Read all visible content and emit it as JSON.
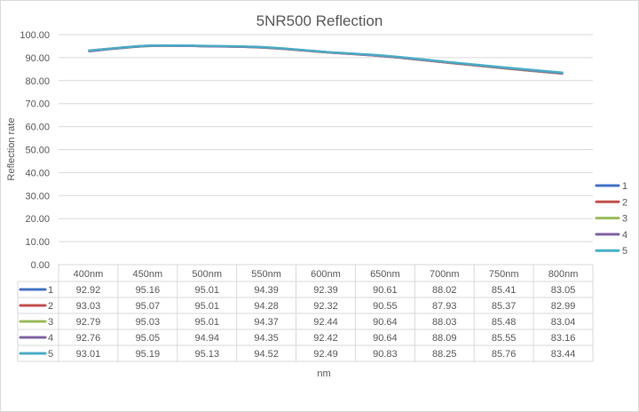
{
  "chart_data": {
    "type": "line",
    "title": "5NR500 Reflection",
    "xlabel": "nm",
    "ylabel": "Reflection rate",
    "ylim": [
      0,
      100
    ],
    "yticks": [
      "0.00",
      "10.00",
      "20.00",
      "30.00",
      "40.00",
      "50.00",
      "60.00",
      "70.00",
      "80.00",
      "90.00",
      "100.00"
    ],
    "grid": true,
    "legend": "right",
    "data_table": true,
    "categories": [
      "400nm",
      "450nm",
      "500nm",
      "550nm",
      "600nm",
      "650nm",
      "700nm",
      "750nm",
      "800nm"
    ],
    "series": [
      {
        "name": "1",
        "color": "#4472c4",
        "values": [
          92.92,
          95.16,
          95.01,
          94.39,
          92.39,
          90.61,
          88.02,
          85.41,
          83.05
        ]
      },
      {
        "name": "2",
        "color": "#c0504d",
        "values": [
          93.03,
          95.07,
          95.01,
          94.28,
          92.32,
          90.55,
          87.93,
          85.37,
          82.99
        ]
      },
      {
        "name": "3",
        "color": "#9bbb59",
        "values": [
          92.79,
          95.03,
          95.01,
          94.37,
          92.44,
          90.64,
          88.03,
          85.48,
          83.04
        ]
      },
      {
        "name": "4",
        "color": "#8064a2",
        "values": [
          92.76,
          95.05,
          94.94,
          94.35,
          92.42,
          90.64,
          88.09,
          85.55,
          83.16
        ]
      },
      {
        "name": "5",
        "color": "#4bacc6",
        "values": [
          93.01,
          95.19,
          95.13,
          94.52,
          92.49,
          90.83,
          88.25,
          85.76,
          83.44
        ]
      }
    ]
  }
}
